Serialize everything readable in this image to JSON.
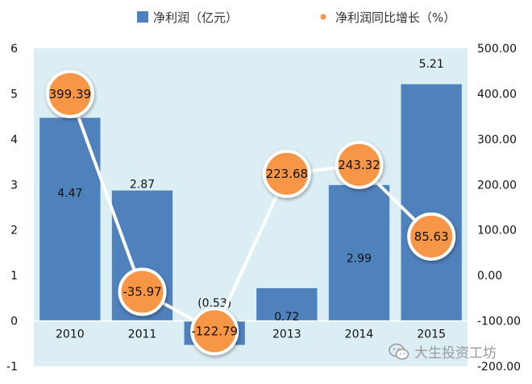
{
  "chart_data": {
    "type": "bar",
    "categories": [
      "2010",
      "2011",
      "2012",
      "2013",
      "2014",
      "2015"
    ],
    "series": [
      {
        "name": "净利润（亿元）",
        "kind": "bar",
        "axis": "left",
        "color": "#4f81bd",
        "values": [
          4.47,
          2.87,
          -0.53,
          0.72,
          2.99,
          5.21
        ],
        "labels": [
          "4.47",
          "2.87",
          "(0.53)",
          "0.72",
          "2.99",
          "5.21"
        ],
        "label_colors": [
          "#111111",
          "#111111",
          "#e0202a",
          "#111111",
          "#111111",
          "#111111"
        ]
      },
      {
        "name": "净利润同比增长（%）",
        "kind": "line",
        "axis": "right",
        "color": "#f79646",
        "values": [
          399.39,
          -35.97,
          -122.79,
          223.68,
          243.32,
          85.63
        ],
        "labels": [
          "399.39",
          "-35.97",
          "-122.79",
          "223.68",
          "243.32",
          "85.63"
        ]
      }
    ],
    "left_axis": {
      "ylim": [
        -1,
        6
      ],
      "ticks": [
        "-1",
        "0",
        "1",
        "2",
        "3",
        "4",
        "5",
        "6"
      ]
    },
    "right_axis": {
      "ylim": [
        -200,
        500
      ],
      "ticks": [
        "-200.00",
        "-100.00",
        "0.00",
        "100.00",
        "200.00",
        "300.00",
        "400.00",
        "500.00"
      ]
    },
    "legend_position": "top",
    "plot_background": "#dbeef4",
    "grid": false
  },
  "watermark": {
    "text": "大生投资工坊",
    "icon": "wechat-icon"
  }
}
